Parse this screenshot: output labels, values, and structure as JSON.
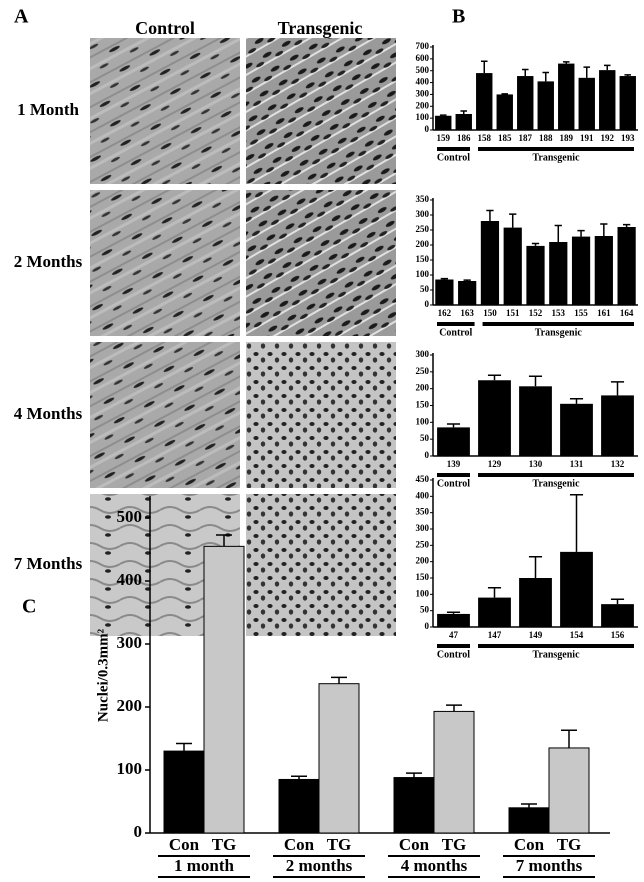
{
  "panel_a": {
    "label": "A",
    "columns": [
      "Control",
      "Transgenic"
    ],
    "rows": [
      "1 Month",
      "2 Months",
      "4 Months",
      "7 Months"
    ]
  },
  "chart_data": [
    {
      "type": "bar",
      "panel_label": "B",
      "color": "#000000",
      "categories": [
        "159",
        "186",
        "158",
        "185",
        "187",
        "188",
        "189",
        "191",
        "192",
        "193"
      ],
      "values": [
        120,
        135,
        480,
        300,
        455,
        410,
        560,
        440,
        505,
        455
      ],
      "errors": [
        5,
        25,
        100,
        5,
        55,
        75,
        15,
        90,
        40,
        10
      ],
      "groups": [
        {
          "name": "Control",
          "size": 2
        },
        {
          "name": "Transgenic",
          "size": 8
        }
      ],
      "ylim": [
        0,
        700
      ],
      "yticks": [
        0,
        100,
        200,
        300,
        400,
        500,
        600,
        700
      ]
    },
    {
      "type": "bar",
      "color": "#000000",
      "categories": [
        "162",
        "163",
        "150",
        "151",
        "152",
        "153",
        "155",
        "161",
        "164"
      ],
      "values": [
        85,
        80,
        280,
        258,
        197,
        210,
        228,
        230,
        260
      ],
      "errors": [
        3,
        3,
        35,
        45,
        8,
        55,
        20,
        40,
        8
      ],
      "groups": [
        {
          "name": "Control",
          "size": 2
        },
        {
          "name": "Transgenic",
          "size": 7
        }
      ],
      "ylim": [
        0,
        350
      ],
      "yticks": [
        0,
        50,
        100,
        150,
        200,
        250,
        300,
        350
      ]
    },
    {
      "type": "bar",
      "color": "#000000",
      "categories": [
        "139",
        "129",
        "130",
        "131",
        "132"
      ],
      "values": [
        85,
        225,
        207,
        155,
        180
      ],
      "errors": [
        10,
        15,
        30,
        15,
        40
      ],
      "groups": [
        {
          "name": "Control",
          "size": 1
        },
        {
          "name": "Transgenic",
          "size": 4
        }
      ],
      "ylim": [
        0,
        300
      ],
      "yticks": [
        0,
        50,
        100,
        150,
        200,
        250,
        300
      ]
    },
    {
      "type": "bar",
      "color": "#000000",
      "categories": [
        "47",
        "147",
        "149",
        "154",
        "156"
      ],
      "values": [
        40,
        90,
        150,
        230,
        70
      ],
      "errors": [
        5,
        30,
        65,
        175,
        15
      ],
      "groups": [
        {
          "name": "Control",
          "size": 1
        },
        {
          "name": "Transgenic",
          "size": 4
        }
      ],
      "ylim": [
        0,
        450
      ],
      "yticks": [
        0,
        50,
        100,
        150,
        200,
        250,
        300,
        350,
        400,
        450
      ]
    },
    {
      "type": "grouped_bar",
      "panel_label": "C",
      "y_label": "Nuclei/0.3mm²",
      "categories": [
        "1 month",
        "2 months",
        "4 months",
        "7 months"
      ],
      "series": [
        {
          "name": "Con",
          "color": "#000000",
          "values": [
            130,
            85,
            88,
            40
          ],
          "errors": [
            12,
            5,
            7,
            6
          ]
        },
        {
          "name": "TG",
          "color": "#c8c8c8",
          "values": [
            455,
            237,
            193,
            135
          ],
          "errors": [
            18,
            10,
            10,
            28
          ]
        }
      ],
      "ylim": [
        0,
        500
      ],
      "yticks": [
        0,
        100,
        200,
        300,
        400,
        500
      ]
    }
  ]
}
